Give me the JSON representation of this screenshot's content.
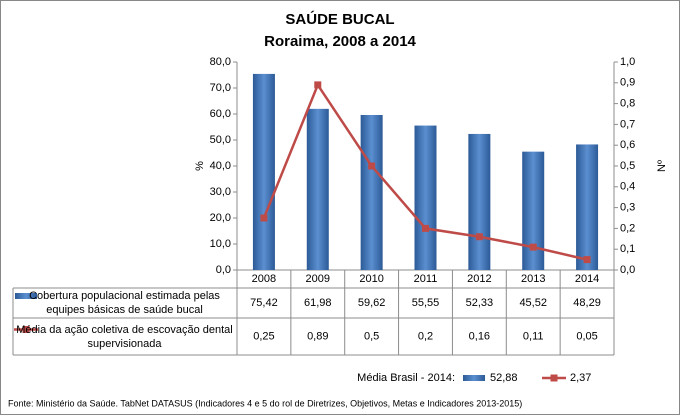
{
  "chart_data": {
    "type": "bar-line",
    "title": "SAÚDE BUCAL",
    "subtitle": "Roraima, 2008 a 2014",
    "y_label": "%",
    "y2_label": "Nº",
    "categories": [
      "2008",
      "2009",
      "2010",
      "2011",
      "2012",
      "2013",
      "2014"
    ],
    "series": [
      {
        "name": "Cobertura populacional estimada pelas equipes básicas de saúde bucal",
        "type": "bar",
        "color": "#4a7ebb",
        "values": [
          75.42,
          61.98,
          59.62,
          55.55,
          52.33,
          45.52,
          48.29
        ],
        "value_labels": [
          "75,42",
          "61,98",
          "59,62",
          "55,55",
          "52,33",
          "45,52",
          "48,29"
        ]
      },
      {
        "name": "Média da ação coletiva de escovação dental supervisionada",
        "type": "line",
        "axis": "y2",
        "color": "#be4b48",
        "values": [
          0.25,
          0.89,
          0.5,
          0.2,
          0.16,
          0.11,
          0.05
        ],
        "value_labels": [
          "0,25",
          "0,89",
          "0,5",
          "0,2",
          "0,16",
          "0,11",
          "0,05"
        ]
      }
    ],
    "ylim": [
      0,
      80
    ],
    "yticks": [
      {
        "value": 0,
        "label": "0,0"
      },
      {
        "value": 10,
        "label": "10,0"
      },
      {
        "value": 20,
        "label": "20,0"
      },
      {
        "value": 30,
        "label": "30,0"
      },
      {
        "value": 40,
        "label": "40,0"
      },
      {
        "value": 50,
        "label": "50,0"
      },
      {
        "value": 60,
        "label": "60,0"
      },
      {
        "value": 70,
        "label": "70,0"
      },
      {
        "value": 80,
        "label": "80,0"
      }
    ],
    "y2lim": [
      0,
      1
    ],
    "y2ticks": [
      {
        "value": 0,
        "label": "0,0"
      },
      {
        "value": 0.1,
        "label": "0,1"
      },
      {
        "value": 0.2,
        "label": "0,2"
      },
      {
        "value": 0.3,
        "label": "0,3"
      },
      {
        "value": 0.4,
        "label": "0,4"
      },
      {
        "value": 0.5,
        "label": "0,5"
      },
      {
        "value": 0.6,
        "label": "0,6"
      },
      {
        "value": 0.7,
        "label": "0,7"
      },
      {
        "value": 0.8,
        "label": "0,8"
      },
      {
        "value": 0.9,
        "label": "0,9"
      },
      {
        "value": 1,
        "label": "1,0"
      }
    ],
    "grid": false,
    "average_label": "Média Brasil - 2014:",
    "average_values": [
      "52,88",
      "2,37"
    ],
    "source": "Fonte: Ministério da Saúde. TabNet DATASUS (Indicadores 4 e 5 do rol de Diretrizes, Objetivos, Metas e Indicadores 2013-2015)"
  }
}
